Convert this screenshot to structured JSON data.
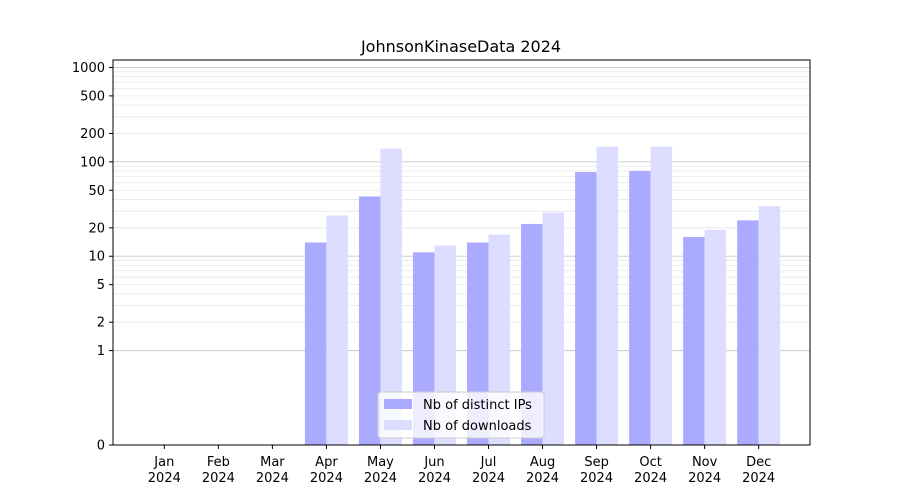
{
  "chart_data": {
    "type": "bar",
    "title": "JohnsonKinaseData 2024",
    "xlabel": "",
    "ylabel": "",
    "yscale": "symlog",
    "ylim": [
      0,
      1200
    ],
    "yticks": [
      0,
      1,
      2,
      5,
      10,
      20,
      50,
      100,
      200,
      500,
      1000
    ],
    "categories": [
      "Jan\n2024",
      "Feb\n2024",
      "Mar\n2024",
      "Apr\n2024",
      "May\n2024",
      "Jun\n2024",
      "Jul\n2024",
      "Aug\n2024",
      "Sep\n2024",
      "Oct\n2024",
      "Nov\n2024",
      "Dec\n2024"
    ],
    "series": [
      {
        "name": "Nb of distinct IPs",
        "color": "#aaaaff",
        "values": [
          0,
          0,
          0,
          14,
          43,
          11,
          14,
          22,
          78,
          80,
          16,
          24
        ]
      },
      {
        "name": "Nb of downloads",
        "color": "#ddddff",
        "values": [
          0,
          0,
          0,
          27,
          138,
          13,
          17,
          29,
          145,
          145,
          19,
          34
        ]
      }
    ],
    "grid": true,
    "legend": "lower-center"
  }
}
